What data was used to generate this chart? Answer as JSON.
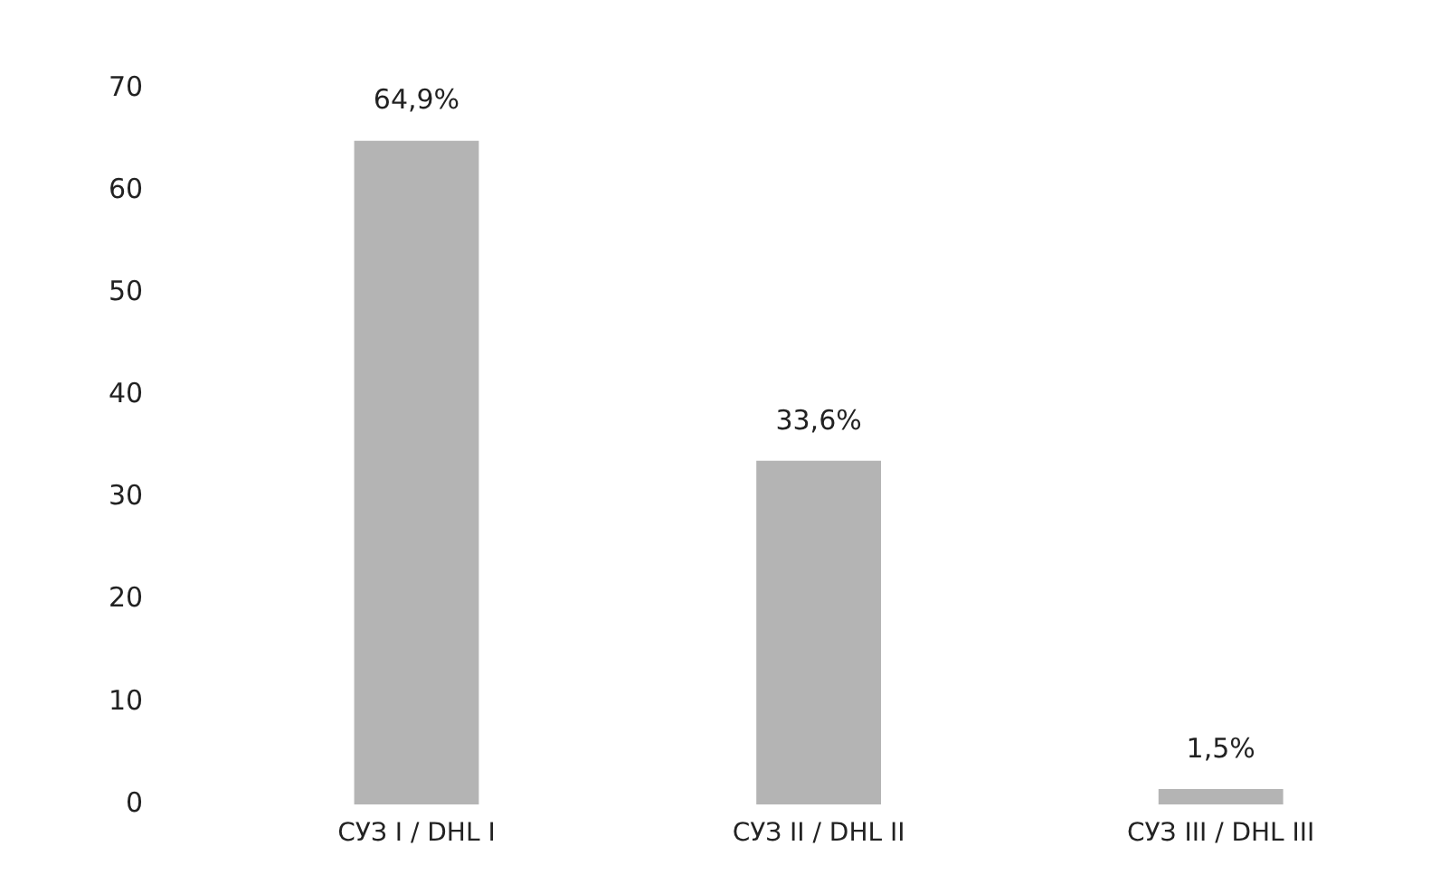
{
  "chart_data": {
    "type": "bar",
    "categories": [
      "СУЗ I / DHL I",
      "СУЗ II / DHL II",
      "СУЗ III / DHL III"
    ],
    "values": [
      64.9,
      33.6,
      1.5
    ],
    "color": "#b4b4b4",
    "value_labels": [
      "64,9%",
      "33,6%",
      "1,5%"
    ],
    "ylim": [
      0,
      70
    ],
    "yticks": [
      0,
      10,
      20,
      30,
      40,
      50,
      60,
      70
    ],
    "grid": false,
    "legend": false
  }
}
